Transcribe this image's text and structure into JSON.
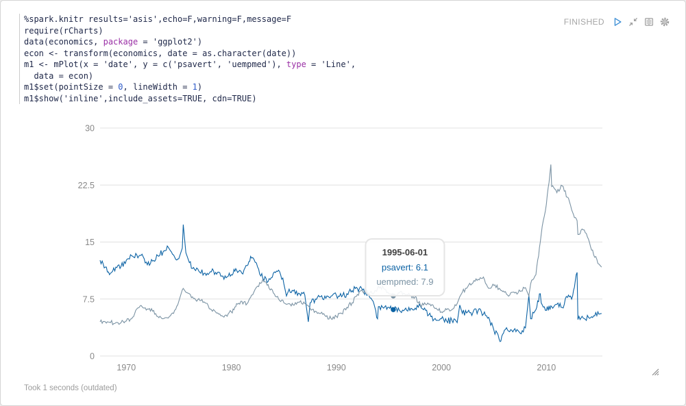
{
  "controls": {
    "status": "FINISHED",
    "icons": [
      "play-icon",
      "compress-icon",
      "book-icon",
      "gear-icon"
    ],
    "accent_color": "#4191d6",
    "icon_color": "#9e9e9e"
  },
  "code": {
    "lines": [
      [
        {
          "t": "%spark.knitr results='asis',echo=F,warning=F,message=F"
        }
      ],
      [
        {
          "t": "require(rCharts)"
        }
      ],
      [
        {
          "t": "data(economics, "
        },
        {
          "t": "package",
          "c": "kw"
        },
        {
          "t": " = 'ggplot2')"
        }
      ],
      [
        {
          "t": "econ <- transform(economics, date = as.character(date))"
        }
      ],
      [
        {
          "t": "m1 <- mPlot(x = 'date', y = c('psavert', 'uempmed'), "
        },
        {
          "t": "type",
          "c": "kw"
        },
        {
          "t": " = 'Line',"
        }
      ],
      [
        {
          "t": "  data = econ)"
        }
      ],
      [
        {
          "t": "m1$set(pointSize = "
        },
        {
          "t": "0",
          "c": "num"
        },
        {
          "t": ", lineWidth = "
        },
        {
          "t": "1",
          "c": "num"
        },
        {
          "t": ")"
        }
      ],
      [
        {
          "t": "m1$show('inline',include_assets=TRUE, cdn=TRUE)"
        }
      ]
    ]
  },
  "chart_data": {
    "type": "line",
    "title": "",
    "xlabel": "",
    "ylabel": "",
    "x_label_ticks": [
      1970,
      1980,
      1990,
      2000,
      2010
    ],
    "y_ticks": [
      0,
      7.5,
      15,
      22.5,
      30
    ],
    "x_range": [
      1967.5,
      2015.33
    ],
    "y_range": [
      0,
      30
    ],
    "grid": "horizontal-only",
    "legend": "none",
    "grid_color": "#e0e0e0",
    "axis_text_color": "#888888",
    "x": [
      1967.5,
      1968,
      1968.5,
      1969,
      1969.5,
      1970,
      1970.5,
      1971,
      1971.5,
      1972,
      1972.5,
      1973,
      1973.5,
      1974,
      1974.5,
      1975,
      1975.33,
      1975.42,
      1975.67,
      1976,
      1976.5,
      1977,
      1977.5,
      1978,
      1978.5,
      1979,
      1979.5,
      1980,
      1980.42,
      1980.5,
      1981,
      1981.5,
      1981.92,
      1982.5,
      1983,
      1983.5,
      1984,
      1984.5,
      1985,
      1985.25,
      1985.5,
      1986,
      1986.5,
      1987,
      1987.33,
      1987.5,
      1988,
      1988.5,
      1989,
      1989.5,
      1990,
      1990.5,
      1991,
      1991.5,
      1992,
      1992.5,
      1993,
      1993.5,
      1993.92,
      1994,
      1994.5,
      1995,
      1995.42,
      1995.5,
      1996,
      1996.5,
      1997,
      1997.5,
      1998,
      1998.5,
      1999,
      1999.5,
      2000,
      2000.5,
      2001,
      2001.5,
      2001.75,
      2002,
      2002.5,
      2003,
      2003.5,
      2004,
      2004.5,
      2005,
      2005.5,
      2005.58,
      2006,
      2006.5,
      2007,
      2007.5,
      2008,
      2008.33,
      2008.5,
      2009,
      2009.42,
      2009.5,
      2010,
      2010.42,
      2010.5,
      2011,
      2011.5,
      2012,
      2012.5,
      2012.92,
      2013,
      2013.5,
      2014,
      2014.5,
      2015,
      2015.25
    ],
    "series": [
      {
        "name": "psavert",
        "color": "#0b62a4",
        "values": [
          12.6,
          11.7,
          10.9,
          11.7,
          11.8,
          12.6,
          13.2,
          13.3,
          13.4,
          12.0,
          12.5,
          13.2,
          13.7,
          14.3,
          13.3,
          12.8,
          14.2,
          17.3,
          13.6,
          12.3,
          11.4,
          11.0,
          10.9,
          11.1,
          11.0,
          10.5,
          10.3,
          10.7,
          11.5,
          11.3,
          10.9,
          11.9,
          12.9,
          11.7,
          10.2,
          9.8,
          10.9,
          11.3,
          9.5,
          7.9,
          8.8,
          8.7,
          8.2,
          8.0,
          4.5,
          7.0,
          7.5,
          7.8,
          7.6,
          7.9,
          8.0,
          7.8,
          8.2,
          8.6,
          8.9,
          8.7,
          8.1,
          7.2,
          4.9,
          6.5,
          6.3,
          6.4,
          6.1,
          6.2,
          6.0,
          6.1,
          6.0,
          6.3,
          6.6,
          6.0,
          5.2,
          4.7,
          4.9,
          4.6,
          4.7,
          4.4,
          6.7,
          5.6,
          5.8,
          5.7,
          6.0,
          5.5,
          5.1,
          3.4,
          2.2,
          1.9,
          3.4,
          3.2,
          3.6,
          3.0,
          3.7,
          8.0,
          4.9,
          6.1,
          8.2,
          7.0,
          6.0,
          6.6,
          6.5,
          6.8,
          6.4,
          7.7,
          7.9,
          11.0,
          4.8,
          5.0,
          5.1,
          5.3,
          5.5,
          5.6
        ]
      },
      {
        "name": "uempmed",
        "color": "#7a92a3",
        "values": [
          4.5,
          4.5,
          4.4,
          4.4,
          4.4,
          4.6,
          4.9,
          6.2,
          6.5,
          6.2,
          5.9,
          5.2,
          4.9,
          5.0,
          5.6,
          7.2,
          8.7,
          8.9,
          8.4,
          8.2,
          7.6,
          7.3,
          7.0,
          6.2,
          5.8,
          5.3,
          5.4,
          5.8,
          6.5,
          6.9,
          7.2,
          6.9,
          8.0,
          9.2,
          10.1,
          9.4,
          8.3,
          7.5,
          7.0,
          6.8,
          6.9,
          6.7,
          7.1,
          6.9,
          6.6,
          6.3,
          5.9,
          5.6,
          5.2,
          4.9,
          5.2,
          5.6,
          6.4,
          7.0,
          8.1,
          8.5,
          8.4,
          8.2,
          8.9,
          9.2,
          8.9,
          8.2,
          7.9,
          8.0,
          8.3,
          8.2,
          8.0,
          7.8,
          6.7,
          6.8,
          6.6,
          6.3,
          5.8,
          6.1,
          6.1,
          6.9,
          7.8,
          8.4,
          9.1,
          9.6,
          10.1,
          10.4,
          8.9,
          9.3,
          8.9,
          8.8,
          8.4,
          8.0,
          8.3,
          8.5,
          9.0,
          7.9,
          9.5,
          10.7,
          15.0,
          16.0,
          20.0,
          25.2,
          22.3,
          21.5,
          22.4,
          20.9,
          18.9,
          17.8,
          16.0,
          16.6,
          15.4,
          13.3,
          12.1,
          11.7
        ]
      }
    ],
    "hover": {
      "date": "1995-06-01",
      "x": 1995.42,
      "rows": [
        {
          "label": "psavert",
          "value": "6.1"
        },
        {
          "label": "uempmed",
          "value": "7.9"
        }
      ]
    }
  },
  "footer": {
    "text": "Took 1 seconds (outdated)"
  }
}
